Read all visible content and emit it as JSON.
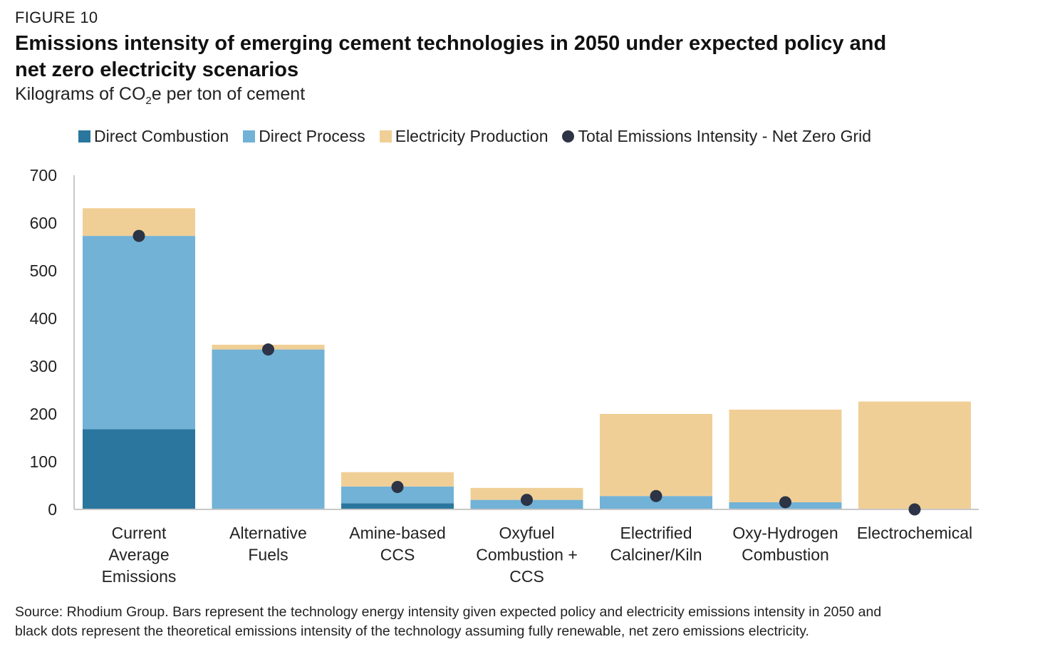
{
  "figure_label": "FIGURE 10",
  "title": "Emissions intensity of emerging cement technologies in 2050 under expected policy and net zero electricity scenarios",
  "subtitle": {
    "prefix": "Kilograms of CO",
    "subscript": "2",
    "suffix": "e per ton of cement"
  },
  "colors": {
    "direct_combustion": "#2a769e",
    "direct_process": "#72b2d6",
    "electricity_production": "#f0cf96",
    "net_zero_dot": "#2c3446",
    "axis": "#c8c8c8"
  },
  "chart_data": {
    "type": "bar",
    "stacked": true,
    "categories": [
      [
        "Current",
        "Average",
        "Emissions"
      ],
      [
        "Alternative",
        "Fuels"
      ],
      [
        "Amine-based",
        "CCS"
      ],
      [
        "Oxyfuel",
        "Combustion +",
        "CCS"
      ],
      [
        "Electrified",
        "Calciner/Kiln"
      ],
      [
        "Oxy-Hydrogen",
        "Combustion"
      ],
      [
        "Electrochemical"
      ]
    ],
    "series": [
      {
        "name": "Direct Combustion",
        "values": [
          168,
          0,
          13,
          2,
          0,
          0,
          0
        ]
      },
      {
        "name": "Direct Process",
        "values": [
          405,
          335,
          35,
          18,
          28,
          15,
          0
        ]
      },
      {
        "name": "Electricity Production",
        "values": [
          58,
          10,
          30,
          25,
          172,
          194,
          226
        ]
      }
    ],
    "markers": {
      "name": "Total Emissions Intensity - Net Zero Grid",
      "values": [
        573,
        335,
        47,
        20,
        28,
        15,
        0
      ]
    },
    "ylim": [
      0,
      700
    ],
    "yticks": [
      0,
      100,
      200,
      300,
      400,
      500,
      600,
      700
    ],
    "xlabel": "",
    "ylabel": "",
    "grid": false,
    "legend_position": "top"
  },
  "source": "Source: Rhodium Group. Bars represent the technology energy intensity given expected policy and electricity emissions intensity in 2050 and black dots represent the theoretical emissions intensity of the technology assuming fully renewable, net zero emissions electricity."
}
